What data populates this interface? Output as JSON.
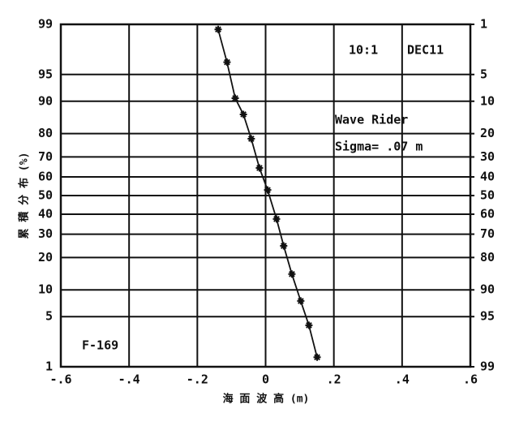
{
  "chart_data": {
    "type": "scatter",
    "x_label": "海 面 波 高 (m)",
    "y_label": "累 積 分 布 (%)",
    "annotations": [
      "10:1",
      "DEC11",
      "Wave Rider",
      "Sigma= .07 m",
      "F-169"
    ],
    "scale": "probability",
    "grid": true,
    "color": "#111111",
    "xlim": [
      -0.6,
      0.6
    ],
    "xticks": [
      {
        "value": -0.6,
        "label": "-.6"
      },
      {
        "value": -0.4,
        "label": "-.4"
      },
      {
        "value": -0.2,
        "label": "-.2"
      },
      0,
      {
        "value": 0.2,
        "label": ".2"
      },
      {
        "value": 0.4,
        "label": ".4"
      },
      {
        "value": 0.6,
        "label": ".6"
      }
    ],
    "ylim": [
      1,
      99
    ],
    "yticks": [
      1,
      5,
      10,
      20,
      30,
      40,
      50,
      60,
      70,
      80,
      90,
      95,
      99
    ],
    "y2lim": [
      99,
      1
    ],
    "y2ticks": [
      1,
      5,
      10,
      20,
      30,
      40,
      50,
      60,
      70,
      80,
      90,
      95,
      99
    ],
    "series": [
      {
        "x": [
          -0.139,
          -0.113,
          -0.089,
          -0.065,
          -0.042,
          -0.018,
          0.006,
          0.032,
          0.053,
          0.077,
          0.103,
          0.127,
          0.151
        ],
        "values": [
          98.8,
          96.5,
          90.7,
          86.5,
          78,
          64.6,
          53,
          37.5,
          24.7,
          14.3,
          7.6,
          3.9,
          1.4
        ]
      }
    ]
  }
}
